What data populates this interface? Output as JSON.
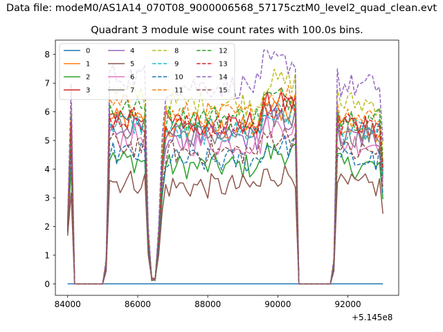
{
  "figure": {
    "suptitle": "Data file: modeM0/AS1A14_070T08_9000006568_57175cztM0_level2_quad_clean.evt",
    "title": "Quadrant 3 module wise count rates with 100.0s bins.",
    "x_offset_label": "+5.145e8"
  },
  "chart_data": {
    "type": "line",
    "title": "Quadrant 3 module wise count rates with 100.0s bins.",
    "xlabel": "",
    "ylabel": "",
    "x_offset": 514500000,
    "xlim": [
      83650,
      93450
    ],
    "ylim": [
      -0.4,
      8.5
    ],
    "xticks": [
      84000,
      86000,
      88000,
      90000,
      92000
    ],
    "xtick_labels": [
      "84000",
      "86000",
      "88000",
      "90000",
      "92000"
    ],
    "yticks": [
      0,
      1,
      2,
      3,
      4,
      5,
      6,
      7,
      8
    ],
    "ytick_labels": [
      "0",
      "1",
      "2",
      "3",
      "4",
      "5",
      "6",
      "7",
      "8"
    ],
    "grid": false,
    "legend": {
      "placement": "top-left",
      "columns": 4
    },
    "bins": {
      "dt": 100,
      "start": 84000,
      "gap1": [
        84200,
        85000
      ],
      "dip": [
        86400,
        86500
      ],
      "gap2": [
        90600,
        91500
      ]
    },
    "series": [
      {
        "name": "0",
        "color": "#1f77b4",
        "dash": false,
        "level": 0.0
      },
      {
        "name": "1",
        "color": "#ff7f0e",
        "dash": false,
        "level": 5.4
      },
      {
        "name": "2",
        "color": "#2ca02c",
        "dash": false,
        "level": 4.1
      },
      {
        "name": "3",
        "color": "#d62728",
        "dash": false,
        "level": 5.6
      },
      {
        "name": "4",
        "color": "#9467bd",
        "dash": false,
        "level": 5.1
      },
      {
        "name": "5",
        "color": "#8c564b",
        "dash": false,
        "level": 3.4
      },
      {
        "name": "6",
        "color": "#e377c2",
        "dash": false,
        "level": 4.9
      },
      {
        "name": "7",
        "color": "#7f7f7f",
        "dash": false,
        "level": 5.2
      },
      {
        "name": "8",
        "color": "#bcbd22",
        "dash": true,
        "level": 6.3
      },
      {
        "name": "9",
        "color": "#17becf",
        "dash": true,
        "level": 5.3
      },
      {
        "name": "10",
        "color": "#1f77b4",
        "dash": true,
        "level": 4.3
      },
      {
        "name": "11",
        "color": "#ff7f0e",
        "dash": true,
        "level": 5.9
      },
      {
        "name": "12",
        "color": "#2ca02c",
        "dash": true,
        "level": 5.8
      },
      {
        "name": "13",
        "color": "#d62728",
        "dash": true,
        "level": 5.5
      },
      {
        "name": "14",
        "color": "#9467bd",
        "dash": true,
        "level": 6.9
      },
      {
        "name": "15",
        "color": "#8c564b",
        "dash": true,
        "level": 4.6
      }
    ]
  }
}
